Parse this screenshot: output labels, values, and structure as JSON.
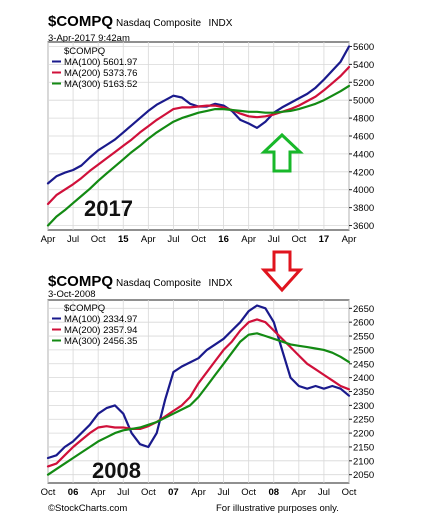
{
  "chart_data": [
    {
      "type": "line",
      "symbol": "$COMPQ",
      "title": "Nasdaq Composite",
      "exchange": "INDX",
      "date": "3-Apr-2017 9:42am",
      "legend_title": "$COMPQ",
      "legend_position": "top-left",
      "year_label": "2017",
      "annotation": "green-up-arrow",
      "grid": true,
      "ylim": [
        3550,
        5650
      ],
      "y_ticks": [
        3600,
        3800,
        4000,
        4200,
        4400,
        4600,
        4800,
        5000,
        5200,
        5400,
        5600
      ],
      "y_tick_labels": [
        "3600",
        "3800",
        "4000",
        "4200",
        "4400",
        "4600",
        "4800",
        "5000",
        "5200",
        "5400",
        "5600"
      ],
      "x_ticks": [
        0,
        3,
        6,
        9,
        12,
        15,
        18,
        21,
        24,
        27,
        30,
        33,
        36
      ],
      "x_tick_labels": [
        "Apr",
        "Jul",
        "Oct",
        "15",
        "Apr",
        "Jul",
        "Oct",
        "16",
        "Apr",
        "Jul",
        "Oct",
        "17",
        "Apr"
      ],
      "x_tick_bold": [
        false,
        false,
        false,
        true,
        false,
        false,
        false,
        true,
        false,
        false,
        false,
        true,
        false
      ],
      "xlim": [
        0,
        36
      ],
      "series": [
        {
          "name": "MA(100) 5601.97",
          "color": "#1a1a8c",
          "points": [
            [
              0,
              4070
            ],
            [
              1,
              4150
            ],
            [
              2,
              4190
            ],
            [
              3,
              4220
            ],
            [
              4,
              4270
            ],
            [
              5,
              4360
            ],
            [
              6,
              4440
            ],
            [
              7,
              4500
            ],
            [
              8,
              4560
            ],
            [
              9,
              4640
            ],
            [
              10,
              4720
            ],
            [
              11,
              4800
            ],
            [
              12,
              4880
            ],
            [
              13,
              4950
            ],
            [
              14,
              5000
            ],
            [
              15,
              5050
            ],
            [
              16,
              5030
            ],
            [
              17,
              4960
            ],
            [
              18,
              4930
            ],
            [
              19,
              4930
            ],
            [
              20,
              4960
            ],
            [
              21,
              4940
            ],
            [
              22,
              4880
            ],
            [
              23,
              4780
            ],
            [
              24,
              4740
            ],
            [
              25,
              4690
            ],
            [
              26,
              4760
            ],
            [
              27,
              4860
            ],
            [
              28,
              4920
            ],
            [
              29,
              4970
            ],
            [
              30,
              5020
            ],
            [
              31,
              5070
            ],
            [
              32,
              5140
            ],
            [
              33,
              5230
            ],
            [
              34,
              5330
            ],
            [
              35,
              5430
            ],
            [
              36,
              5600
            ]
          ]
        },
        {
          "name": "MA(200) 5373.76",
          "color": "#d0103a",
          "points": [
            [
              0,
              3840
            ],
            [
              1,
              3940
            ],
            [
              2,
              4000
            ],
            [
              3,
              4060
            ],
            [
              4,
              4130
            ],
            [
              5,
              4210
            ],
            [
              6,
              4280
            ],
            [
              7,
              4350
            ],
            [
              8,
              4420
            ],
            [
              9,
              4490
            ],
            [
              10,
              4560
            ],
            [
              11,
              4640
            ],
            [
              12,
              4710
            ],
            [
              13,
              4780
            ],
            [
              14,
              4840
            ],
            [
              15,
              4900
            ],
            [
              16,
              4920
            ],
            [
              17,
              4920
            ],
            [
              18,
              4930
            ],
            [
              19,
              4940
            ],
            [
              20,
              4940
            ],
            [
              21,
              4920
            ],
            [
              22,
              4890
            ],
            [
              23,
              4850
            ],
            [
              24,
              4820
            ],
            [
              25,
              4810
            ],
            [
              26,
              4820
            ],
            [
              27,
              4840
            ],
            [
              28,
              4870
            ],
            [
              29,
              4900
            ],
            [
              30,
              4940
            ],
            [
              31,
              4990
            ],
            [
              32,
              5040
            ],
            [
              33,
              5110
            ],
            [
              34,
              5190
            ],
            [
              35,
              5270
            ],
            [
              36,
              5370
            ]
          ]
        },
        {
          "name": "MA(300) 5163.52",
          "color": "#138a13",
          "points": [
            [
              0,
              3600
            ],
            [
              1,
              3700
            ],
            [
              2,
              3770
            ],
            [
              3,
              3850
            ],
            [
              4,
              3930
            ],
            [
              5,
              4010
            ],
            [
              6,
              4100
            ],
            [
              7,
              4180
            ],
            [
              8,
              4260
            ],
            [
              9,
              4340
            ],
            [
              10,
              4420
            ],
            [
              11,
              4490
            ],
            [
              12,
              4570
            ],
            [
              13,
              4640
            ],
            [
              14,
              4700
            ],
            [
              15,
              4760
            ],
            [
              16,
              4800
            ],
            [
              17,
              4830
            ],
            [
              18,
              4860
            ],
            [
              19,
              4880
            ],
            [
              20,
              4900
            ],
            [
              21,
              4900
            ],
            [
              22,
              4890
            ],
            [
              23,
              4880
            ],
            [
              24,
              4870
            ],
            [
              25,
              4870
            ],
            [
              26,
              4860
            ],
            [
              27,
              4860
            ],
            [
              28,
              4870
            ],
            [
              29,
              4880
            ],
            [
              30,
              4900
            ],
            [
              31,
              4930
            ],
            [
              32,
              4960
            ],
            [
              33,
              5000
            ],
            [
              34,
              5050
            ],
            [
              35,
              5100
            ],
            [
              36,
              5160
            ]
          ]
        }
      ]
    },
    {
      "type": "line",
      "symbol": "$COMPQ",
      "title": "Nasdaq Composite",
      "exchange": "INDX",
      "date": "3-Oct-2008",
      "legend_title": "$COMPQ",
      "legend_position": "top-left",
      "year_label": "2008",
      "annotation": "red-down-arrow",
      "grid": true,
      "ylim": [
        2020,
        2680
      ],
      "y_ticks": [
        2050,
        2100,
        2150,
        2200,
        2250,
        2300,
        2350,
        2400,
        2450,
        2500,
        2550,
        2600,
        2650
      ],
      "y_tick_labels": [
        "2050",
        "2100",
        "2150",
        "2200",
        "2250",
        "2300",
        "2350",
        "2400",
        "2450",
        "2500",
        "2550",
        "2600",
        "2650"
      ],
      "x_ticks": [
        0,
        3,
        6,
        9,
        12,
        15,
        18,
        21,
        24,
        27,
        30,
        33,
        36
      ],
      "x_tick_labels": [
        "Oct",
        "06",
        "Apr",
        "Jul",
        "Oct",
        "07",
        "Apr",
        "Jul",
        "Oct",
        "08",
        "Apr",
        "Jul",
        "Oct"
      ],
      "x_tick_bold": [
        false,
        true,
        false,
        false,
        false,
        true,
        false,
        false,
        false,
        true,
        false,
        false,
        false
      ],
      "xlim": [
        0,
        36
      ],
      "series": [
        {
          "name": "MA(100) 2334.97",
          "color": "#1a1a8c",
          "points": [
            [
              0,
              2110
            ],
            [
              1,
              2120
            ],
            [
              2,
              2150
            ],
            [
              3,
              2170
            ],
            [
              4,
              2200
            ],
            [
              5,
              2230
            ],
            [
              6,
              2270
            ],
            [
              7,
              2290
            ],
            [
              8,
              2300
            ],
            [
              9,
              2270
            ],
            [
              10,
              2200
            ],
            [
              11,
              2160
            ],
            [
              12,
              2150
            ],
            [
              13,
              2200
            ],
            [
              14,
              2320
            ],
            [
              15,
              2420
            ],
            [
              16,
              2440
            ],
            [
              17,
              2455
            ],
            [
              18,
              2470
            ],
            [
              19,
              2500
            ],
            [
              20,
              2520
            ],
            [
              21,
              2540
            ],
            [
              22,
              2570
            ],
            [
              23,
              2600
            ],
            [
              24,
              2640
            ],
            [
              25,
              2660
            ],
            [
              26,
              2650
            ],
            [
              27,
              2600
            ],
            [
              28,
              2500
            ],
            [
              29,
              2400
            ],
            [
              30,
              2370
            ],
            [
              31,
              2360
            ],
            [
              32,
              2370
            ],
            [
              33,
              2360
            ],
            [
              34,
              2370
            ],
            [
              35,
              2360
            ],
            [
              36,
              2335
            ]
          ]
        },
        {
          "name": "MA(200) 2357.94",
          "color": "#d0103a",
          "points": [
            [
              0,
              2080
            ],
            [
              1,
              2090
            ],
            [
              2,
              2120
            ],
            [
              3,
              2150
            ],
            [
              4,
              2175
            ],
            [
              5,
              2200
            ],
            [
              6,
              2220
            ],
            [
              7,
              2225
            ],
            [
              8,
              2220
            ],
            [
              9,
              2220
            ],
            [
              10,
              2215
            ],
            [
              11,
              2215
            ],
            [
              12,
              2225
            ],
            [
              13,
              2240
            ],
            [
              14,
              2260
            ],
            [
              15,
              2280
            ],
            [
              16,
              2300
            ],
            [
              17,
              2330
            ],
            [
              18,
              2380
            ],
            [
              19,
              2420
            ],
            [
              20,
              2460
            ],
            [
              21,
              2500
            ],
            [
              22,
              2530
            ],
            [
              23,
              2570
            ],
            [
              24,
              2600
            ],
            [
              25,
              2610
            ],
            [
              26,
              2600
            ],
            [
              27,
              2570
            ],
            [
              28,
              2540
            ],
            [
              29,
              2510
            ],
            [
              30,
              2480
            ],
            [
              31,
              2450
            ],
            [
              32,
              2430
            ],
            [
              33,
              2410
            ],
            [
              34,
              2390
            ],
            [
              35,
              2370
            ],
            [
              36,
              2358
            ]
          ]
        },
        {
          "name": "MA(300) 2456.35",
          "color": "#138a13",
          "points": [
            [
              0,
              2050
            ],
            [
              1,
              2070
            ],
            [
              2,
              2090
            ],
            [
              3,
              2110
            ],
            [
              4,
              2130
            ],
            [
              5,
              2150
            ],
            [
              6,
              2170
            ],
            [
              7,
              2185
            ],
            [
              8,
              2200
            ],
            [
              9,
              2210
            ],
            [
              10,
              2215
            ],
            [
              11,
              2220
            ],
            [
              12,
              2230
            ],
            [
              13,
              2240
            ],
            [
              14,
              2255
            ],
            [
              15,
              2270
            ],
            [
              16,
              2285
            ],
            [
              17,
              2300
            ],
            [
              18,
              2330
            ],
            [
              19,
              2370
            ],
            [
              20,
              2410
            ],
            [
              21,
              2450
            ],
            [
              22,
              2490
            ],
            [
              23,
              2530
            ],
            [
              24,
              2555
            ],
            [
              25,
              2560
            ],
            [
              26,
              2550
            ],
            [
              27,
              2540
            ],
            [
              28,
              2530
            ],
            [
              29,
              2520
            ],
            [
              30,
              2515
            ],
            [
              31,
              2510
            ],
            [
              32,
              2505
            ],
            [
              33,
              2500
            ],
            [
              34,
              2490
            ],
            [
              35,
              2475
            ],
            [
              36,
              2456
            ]
          ]
        }
      ]
    }
  ],
  "footer": {
    "left": "©StockCharts.com",
    "right": "For illustrative purposes only."
  }
}
